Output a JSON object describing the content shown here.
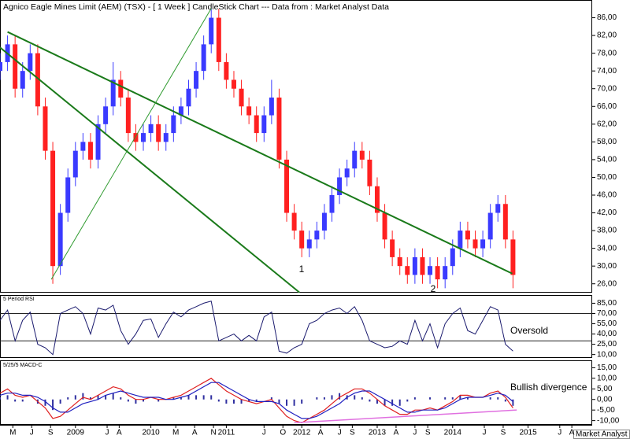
{
  "chart_data": [
    {
      "type": "candlestick",
      "title": "Agnico Eagle Mines Limit (AEM) (TSX) -  [ 1 Week ] CandleStick Chart --- Data from : Market Analyst Data",
      "up_color": "#3a3aff",
      "down_color": "#ff2020",
      "x": [
        2008.0,
        2008.1,
        2008.2,
        2008.3,
        2008.4,
        2008.5,
        2008.6,
        2008.7,
        2008.8,
        2008.9,
        2009.0,
        2009.1,
        2009.2,
        2009.3,
        2009.4,
        2009.5,
        2009.6,
        2009.7,
        2009.8,
        2009.9,
        2010.0,
        2010.1,
        2010.2,
        2010.3,
        2010.4,
        2010.5,
        2010.6,
        2010.7,
        2010.8,
        2010.9,
        2011.0,
        2011.1,
        2011.2,
        2011.3,
        2011.4,
        2011.5,
        2011.6,
        2011.7,
        2011.8,
        2011.9,
        2012.0,
        2012.1,
        2012.2,
        2012.3,
        2012.4,
        2012.5,
        2012.6,
        2012.7,
        2012.8,
        2012.9,
        2013.0,
        2013.1,
        2013.2,
        2013.3,
        2013.4,
        2013.5,
        2013.6,
        2013.7,
        2013.8,
        2013.9,
        2014.0,
        2014.1,
        2014.2,
        2014.3,
        2014.4,
        2014.5,
        2014.6,
        2014.7,
        2014.8
      ],
      "open": [
        74,
        76,
        80,
        70,
        74,
        78,
        66,
        56,
        30,
        42,
        50,
        56,
        58,
        54,
        62,
        66,
        72,
        68,
        60,
        58,
        60,
        62,
        58,
        60,
        64,
        66,
        70,
        74,
        80,
        86,
        76,
        72,
        70,
        66,
        64,
        60,
        64,
        68,
        54,
        42,
        38,
        34,
        36,
        38,
        42,
        46,
        50,
        52,
        56,
        54,
        48,
        42,
        36,
        32,
        30,
        28,
        32,
        28,
        30,
        27,
        30,
        34,
        38,
        36,
        34,
        36,
        42,
        44,
        36
      ],
      "high": [
        78,
        82,
        82,
        76,
        80,
        80,
        68,
        58,
        44,
        52,
        58,
        60,
        60,
        64,
        68,
        76,
        74,
        70,
        62,
        62,
        64,
        64,
        62,
        66,
        68,
        72,
        76,
        82,
        88,
        88,
        78,
        74,
        72,
        68,
        66,
        66,
        72,
        70,
        56,
        44,
        40,
        38,
        40,
        44,
        48,
        52,
        54,
        58,
        58,
        56,
        50,
        44,
        38,
        34,
        32,
        34,
        34,
        32,
        32,
        32,
        36,
        40,
        40,
        38,
        38,
        44,
        46,
        46,
        38
      ],
      "low": [
        72,
        74,
        68,
        68,
        72,
        64,
        54,
        26,
        28,
        40,
        48,
        54,
        52,
        52,
        60,
        64,
        66,
        58,
        56,
        56,
        58,
        56,
        56,
        58,
        62,
        64,
        68,
        72,
        78,
        74,
        70,
        68,
        64,
        62,
        58,
        58,
        62,
        52,
        40,
        36,
        32,
        32,
        34,
        36,
        40,
        44,
        48,
        50,
        52,
        46,
        40,
        34,
        30,
        28,
        26,
        26,
        26,
        26,
        25,
        25,
        28,
        32,
        34,
        32,
        32,
        34,
        40,
        34,
        25
      ],
      "close": [
        76,
        80,
        70,
        74,
        78,
        66,
        56,
        30,
        42,
        50,
        56,
        58,
        54,
        62,
        66,
        72,
        68,
        60,
        58,
        60,
        62,
        58,
        60,
        64,
        66,
        70,
        74,
        80,
        86,
        76,
        72,
        70,
        66,
        64,
        60,
        64,
        68,
        54,
        42,
        38,
        34,
        36,
        38,
        42,
        46,
        50,
        52,
        56,
        54,
        48,
        42,
        36,
        32,
        30,
        28,
        32,
        28,
        30,
        27,
        30,
        34,
        38,
        36,
        34,
        36,
        42,
        44,
        36,
        28
      ],
      "xlim": [
        2008.0,
        2015.85
      ],
      "xticks": [
        {
          "value": 2008.17,
          "label": "M"
        },
        {
          "value": 2008.42,
          "label": "J"
        },
        {
          "value": 2008.67,
          "label": "S"
        },
        {
          "value": 2009.0,
          "label": "2009"
        },
        {
          "value": 2009.42,
          "label": "J"
        },
        {
          "value": 2009.58,
          "label": "A"
        },
        {
          "value": 2010.0,
          "label": "2010"
        },
        {
          "value": 2010.33,
          "label": "M"
        },
        {
          "value": 2010.58,
          "label": "A"
        },
        {
          "value": 2010.83,
          "label": "N"
        },
        {
          "value": 2011.0,
          "label": "2011"
        },
        {
          "value": 2011.5,
          "label": "J"
        },
        {
          "value": 2011.75,
          "label": "O"
        },
        {
          "value": 2012.0,
          "label": "2012"
        },
        {
          "value": 2012.25,
          "label": "A"
        },
        {
          "value": 2012.5,
          "label": "J"
        },
        {
          "value": 2012.67,
          "label": "S"
        },
        {
          "value": 2013.0,
          "label": "2013"
        },
        {
          "value": 2013.25,
          "label": "A"
        },
        {
          "value": 2013.5,
          "label": "J"
        },
        {
          "value": 2013.67,
          "label": "S"
        },
        {
          "value": 2014.0,
          "label": "2014"
        },
        {
          "value": 2014.42,
          "label": "J"
        },
        {
          "value": 2014.67,
          "label": "S"
        },
        {
          "value": 2015.0,
          "label": "2015"
        },
        {
          "value": 2015.42,
          "label": "J"
        },
        {
          "value": 2015.58,
          "label": "A"
        }
      ],
      "ylim": [
        24,
        90
      ],
      "yticks": [
        {
          "value": 86,
          "label": "86,00"
        },
        {
          "value": 82,
          "label": "82,00"
        },
        {
          "value": 78,
          "label": "78,00"
        },
        {
          "value": 74,
          "label": "74,00"
        },
        {
          "value": 70,
          "label": "70,00"
        },
        {
          "value": 66,
          "label": "66,00"
        },
        {
          "value": 62,
          "label": "62,00"
        },
        {
          "value": 58,
          "label": "58,00"
        },
        {
          "value": 54,
          "label": "54,00"
        },
        {
          "value": 50,
          "label": "50,00"
        },
        {
          "value": 46,
          "label": "46,00"
        },
        {
          "value": 42,
          "label": "42,00"
        },
        {
          "value": 38,
          "label": "38,00"
        },
        {
          "value": 34,
          "label": "34,00"
        },
        {
          "value": 30,
          "label": "30,00"
        },
        {
          "value": 26,
          "label": "26,00"
        }
      ],
      "trendlines": [
        {
          "color": "#1a7a1a",
          "x": [
            2008.1,
            2014.79
          ],
          "y": [
            82.8,
            28.3
          ]
        },
        {
          "color": "#1a7a1a",
          "x": [
            2008.0,
            2011.97
          ],
          "y": [
            79.3,
            24.05
          ]
        },
        {
          "color": "#2e9a2e",
          "x": [
            2008.68,
            2010.8
          ],
          "y": [
            27,
            88.1
          ]
        }
      ],
      "annotations": [
        "1",
        "2"
      ]
    },
    {
      "type": "line",
      "label": "5 Period RSI",
      "color": "#1a1a6e",
      "values": [
        60,
        75,
        30,
        60,
        72,
        25,
        20,
        10,
        70,
        75,
        80,
        70,
        40,
        78,
        75,
        82,
        45,
        25,
        40,
        60,
        62,
        35,
        55,
        72,
        65,
        75,
        80,
        85,
        88,
        30,
        35,
        40,
        30,
        38,
        30,
        65,
        72,
        15,
        12,
        20,
        25,
        55,
        60,
        70,
        75,
        78,
        70,
        80,
        60,
        30,
        25,
        20,
        22,
        30,
        25,
        60,
        30,
        55,
        20,
        55,
        70,
        78,
        45,
        40,
        60,
        80,
        75,
        25,
        15
      ],
      "levels": [
        70,
        30
      ],
      "ylim": [
        5,
        97
      ],
      "yticks": [
        {
          "value": 85,
          "label": "85,00"
        },
        {
          "value": 70,
          "label": "70,00"
        },
        {
          "value": 55,
          "label": "55,00"
        },
        {
          "value": 40,
          "label": "40,00"
        },
        {
          "value": 25,
          "label": "25,00"
        },
        {
          "value": 10,
          "label": "10,00"
        }
      ],
      "annotation": "Oversold"
    },
    {
      "type": "macd",
      "label": "5/25/5 MACD-C",
      "series": [
        {
          "color": "#e02020",
          "values": [
            3,
            5,
            2,
            1,
            2,
            -1,
            -4,
            -9,
            -8,
            -5,
            -2,
            1,
            0,
            2,
            4,
            6,
            5,
            2,
            0,
            0,
            1,
            0,
            0,
            1,
            2,
            4,
            6,
            8,
            10,
            7,
            4,
            2,
            0,
            -1,
            -2,
            -1,
            0,
            -4,
            -8,
            -10,
            -11,
            -9,
            -7,
            -5,
            -2,
            1,
            3,
            5,
            5,
            3,
            0,
            -3,
            -5,
            -7,
            -7,
            -5,
            -5,
            -4,
            -5,
            -3,
            -1,
            2,
            2,
            1,
            1,
            3,
            4,
            1,
            -4
          ]
        },
        {
          "color": "#2020c0",
          "values": [
            2,
            3,
            3,
            2,
            2,
            1,
            -1,
            -4,
            -6,
            -6,
            -4,
            -2,
            -1,
            0,
            2,
            3,
            4,
            3,
            2,
            1,
            1,
            1,
            0,
            0,
            1,
            2,
            4,
            6,
            8,
            8,
            6,
            4,
            2,
            0,
            -1,
            -1,
            -1,
            -2,
            -5,
            -7,
            -9,
            -9,
            -8,
            -6,
            -4,
            -2,
            1,
            3,
            4,
            4,
            2,
            0,
            -2,
            -4,
            -6,
            -6,
            -5,
            -5,
            -5,
            -4,
            -2,
            0,
            1,
            1,
            1,
            2,
            3,
            2,
            -1
          ]
        }
      ],
      "histogram": {
        "color": "#3030a0",
        "values": [
          1,
          2,
          -1,
          -1,
          0,
          -2,
          -3,
          -5,
          -2,
          1,
          2,
          3,
          1,
          2,
          2,
          3,
          1,
          -1,
          -2,
          -1,
          0,
          -1,
          0,
          1,
          1,
          2,
          2,
          2,
          2,
          -1,
          -2,
          -2,
          -2,
          -1,
          -1,
          0,
          1,
          -2,
          -3,
          -3,
          -2,
          0,
          1,
          1,
          2,
          3,
          2,
          2,
          1,
          -1,
          -2,
          -3,
          -3,
          -3,
          -1,
          1,
          0,
          1,
          0,
          1,
          1,
          2,
          1,
          0,
          0,
          1,
          1,
          -1,
          -3
        ]
      },
      "divergence": {
        "color": "#e070e0",
        "x": [
          2011.9,
          2014.85
        ],
        "y": [
          -11,
          -5
        ]
      },
      "ylim": [
        -12,
        18.5
      ],
      "yticks": [
        {
          "value": 15,
          "label": "15,00"
        },
        {
          "value": 10,
          "label": "10,00"
        },
        {
          "value": 5,
          "label": "5,00"
        },
        {
          "value": 0,
          "label": "0,00"
        },
        {
          "value": -5,
          "label": "-5,00"
        },
        {
          "value": -10,
          "label": "-10,00"
        }
      ],
      "annotation": "Bullish divergence"
    }
  ],
  "footer": "Market Analyst 6"
}
